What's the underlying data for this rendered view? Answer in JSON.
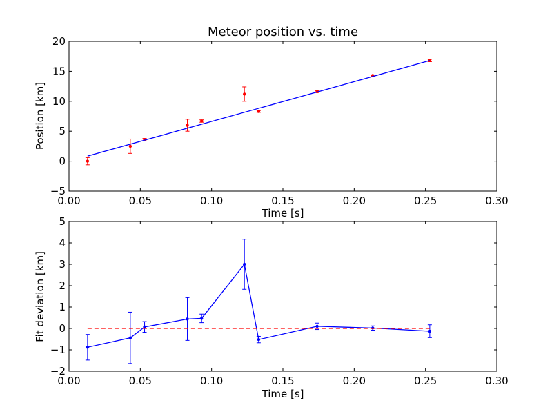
{
  "chart_data": [
    {
      "type": "scatter",
      "title": "Meteor position vs. time",
      "xlabel": "Time [s]",
      "ylabel": "Position [km]",
      "xlim": [
        0.0,
        0.3
      ],
      "ylim": [
        -5,
        20
      ],
      "xticks": [
        "0.00",
        "0.05",
        "0.10",
        "0.15",
        "0.20",
        "0.25",
        "0.30"
      ],
      "xtick_values": [
        0.0,
        0.05,
        0.1,
        0.15,
        0.2,
        0.25,
        0.3
      ],
      "yticks": [
        "−5",
        "0",
        "5",
        "10",
        "15",
        "20"
      ],
      "ytick_values": [
        -5,
        0,
        5,
        10,
        15,
        20
      ],
      "grid": false,
      "series": [
        {
          "kind": "points-with-errorbars",
          "color": "#ff0000",
          "x": [
            0.013,
            0.043,
            0.053,
            0.083,
            0.093,
            0.123,
            0.133,
            0.174,
            0.213,
            0.253
          ],
          "y": [
            0.0,
            2.5,
            3.6,
            6.0,
            6.7,
            11.2,
            8.3,
            11.6,
            14.3,
            16.8
          ],
          "yerr": [
            0.6,
            1.2,
            0.2,
            1.0,
            0.2,
            1.2,
            0.15,
            0.15,
            0.1,
            0.2
          ]
        },
        {
          "kind": "fit-line",
          "color": "#0000ff",
          "x": [
            0.013,
            0.253
          ],
          "y": [
            0.85,
            16.8
          ]
        }
      ]
    },
    {
      "type": "line",
      "title": "",
      "xlabel": "Time [s]",
      "ylabel": "Fit deviation [km]",
      "xlim": [
        0.0,
        0.3
      ],
      "ylim": [
        -2,
        5
      ],
      "xticks": [
        "0.00",
        "0.05",
        "0.10",
        "0.15",
        "0.20",
        "0.25",
        "0.30"
      ],
      "xtick_values": [
        0.0,
        0.05,
        0.1,
        0.15,
        0.2,
        0.25,
        0.3
      ],
      "yticks": [
        "−2",
        "−1",
        "0",
        "1",
        "2",
        "3",
        "4",
        "5"
      ],
      "ytick_values": [
        -2,
        -1,
        0,
        1,
        2,
        3,
        4,
        5
      ],
      "grid": false,
      "series": [
        {
          "kind": "line-with-errorbars",
          "color": "#0000ff",
          "x": [
            0.013,
            0.043,
            0.053,
            0.083,
            0.093,
            0.123,
            0.133,
            0.174,
            0.213,
            0.253
          ],
          "y": [
            -0.88,
            -0.44,
            0.07,
            0.44,
            0.47,
            3.0,
            -0.52,
            0.1,
            0.02,
            -0.13
          ],
          "yerr": [
            0.6,
            1.2,
            0.25,
            1.0,
            0.2,
            1.17,
            0.15,
            0.15,
            0.1,
            0.3
          ]
        },
        {
          "kind": "reference-line",
          "color": "#ff0000",
          "dashed": true,
          "x": [
            0.013,
            0.253
          ],
          "y": [
            0,
            0
          ]
        }
      ]
    }
  ]
}
